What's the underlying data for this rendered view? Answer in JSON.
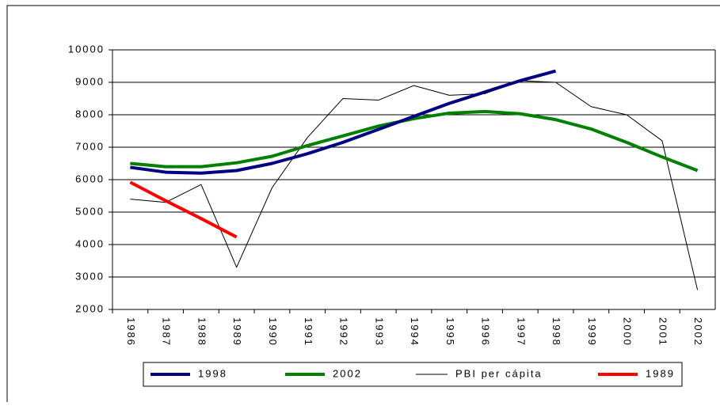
{
  "chart_data": {
    "type": "line",
    "categories": [
      "1986",
      "1987",
      "1988",
      "1989",
      "1990",
      "1991",
      "1992",
      "1993",
      "1994",
      "1995",
      "1996",
      "1997",
      "1998",
      "1999",
      "2000",
      "2001",
      "2002"
    ],
    "series": [
      {
        "name": "1998",
        "color": "#000080",
        "width": 4,
        "values": [
          6380,
          6230,
          6200,
          6280,
          6500,
          6800,
          7150,
          7550,
          7950,
          8350,
          8700,
          9050,
          9350,
          null,
          null,
          null,
          null
        ]
      },
      {
        "name": "2002",
        "color": "#008000",
        "width": 4,
        "values": [
          6500,
          6400,
          6400,
          6520,
          6720,
          7050,
          7350,
          7650,
          7880,
          8050,
          8100,
          8030,
          7850,
          7560,
          7150,
          6700,
          6280
        ]
      },
      {
        "name": "PBI per cápita",
        "color": "#000000",
        "width": 1,
        "values": [
          5400,
          5300,
          5850,
          3300,
          5750,
          7300,
          8500,
          8450,
          8900,
          8600,
          8650,
          9050,
          9000,
          8250,
          8000,
          7200,
          2600
        ]
      },
      {
        "name": "1989",
        "color": "#ff0000",
        "width": 4,
        "values": [
          5920,
          5350,
          4800,
          4230,
          null,
          null,
          null,
          null,
          null,
          null,
          null,
          null,
          null,
          null,
          null,
          null,
          null
        ]
      }
    ],
    "ylim": [
      2000,
      10000
    ],
    "yticks": [
      2000,
      3000,
      4000,
      5000,
      6000,
      7000,
      8000,
      9000,
      10000
    ],
    "grid": true
  }
}
